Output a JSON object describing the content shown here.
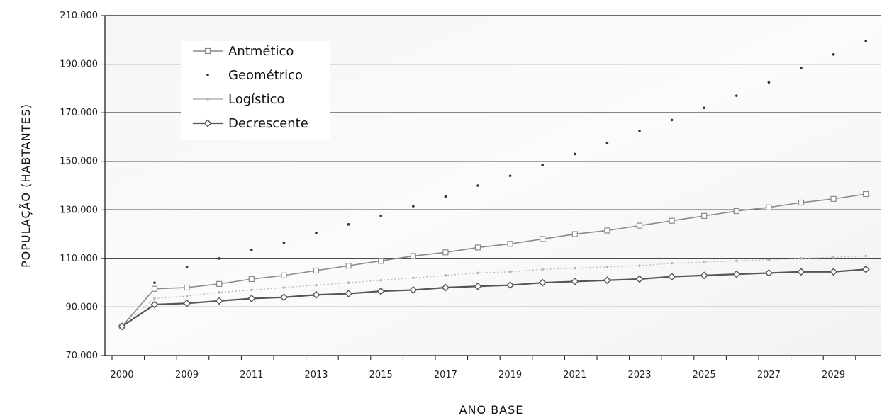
{
  "chart_data": {
    "type": "line",
    "title": "",
    "xlabel": "ANO BASE",
    "ylabel": "POPULAÇÃO (HABTANTES)",
    "ylim": [
      70000,
      210000
    ],
    "y_ticks": [
      "70.000",
      "90.000",
      "110.000",
      "130.000",
      "150.000",
      "170.000",
      "190.000",
      "210.000"
    ],
    "grid": true,
    "legend_position": "top-left",
    "categories": [
      "2000",
      "2008",
      "2009",
      "2010",
      "2011",
      "2012",
      "2013",
      "2014",
      "2015",
      "2016",
      "2017",
      "2018",
      "2019",
      "2020",
      "2021",
      "2022",
      "2023",
      "2024",
      "2025",
      "2026",
      "2027",
      "2028",
      "2029",
      "2030"
    ],
    "x_tick_labels": [
      "2000",
      "2009",
      "2011",
      "2013",
      "2015",
      "2017",
      "2019",
      "2021",
      "2023",
      "2025",
      "2027",
      "2029"
    ],
    "series": [
      {
        "name": "Antmético",
        "color": "#8a8a8a",
        "marker": "square",
        "values": [
          82000,
          97500,
          98000,
          99500,
          101500,
          103000,
          105000,
          107000,
          109000,
          111000,
          112500,
          114500,
          116000,
          118000,
          120000,
          121500,
          123500,
          125500,
          127500,
          129500,
          131000,
          133000,
          134500,
          136500
        ]
      },
      {
        "name": "Geométrico",
        "color": "#333333",
        "marker": "dot",
        "values": [
          82000,
          100000,
          106500,
          110000,
          113500,
          116500,
          120500,
          124000,
          127500,
          131500,
          135500,
          140000,
          144000,
          148500,
          153000,
          157500,
          162500,
          167000,
          172000,
          177000,
          182500,
          188500,
          194000,
          199500
        ]
      },
      {
        "name": "Logístico",
        "color": "#b5b5b5",
        "marker": "dot",
        "values": [
          82000,
          93500,
          94500,
          96000,
          97000,
          98000,
          99000,
          100000,
          101000,
          102000,
          103000,
          104000,
          104500,
          105500,
          106000,
          106500,
          107000,
          108000,
          108500,
          109000,
          109500,
          110000,
          110500,
          111000
        ]
      },
      {
        "name": "Decrescente",
        "color": "#555555",
        "marker": "diamond",
        "values": [
          82000,
          91000,
          91500,
          92500,
          93500,
          94000,
          95000,
          95500,
          96500,
          97000,
          98000,
          98500,
          99000,
          100000,
          100500,
          101000,
          101500,
          102500,
          103000,
          103500,
          104000,
          104500,
          104500,
          105500
        ]
      }
    ]
  }
}
